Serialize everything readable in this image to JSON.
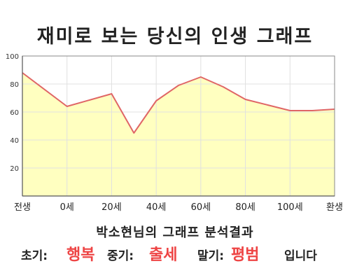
{
  "title": "재미로 보는 당신의 인생 그래프",
  "summary_label": "박소현님의 그래프 분석결과",
  "result": {
    "early_label": "초기:",
    "early_value": "행복",
    "mid_label": "중기:",
    "mid_value": "출세",
    "late_label": "말기:",
    "late_value": "평범",
    "ending": "입니다"
  },
  "colors": {
    "line": "#e06666",
    "fill": "#ffffc0",
    "grid": "#e0e0e0",
    "axis": "#888888",
    "highlight": "#ee4444"
  },
  "chart_data": {
    "type": "area",
    "title": "",
    "xlabel": "",
    "ylabel": "",
    "x_tick_labels": [
      "전생",
      "0세",
      "20세",
      "40세",
      "60세",
      "80세",
      "100세",
      "환생"
    ],
    "y_ticks": [
      20,
      40,
      60,
      80,
      100
    ],
    "ylim": [
      0,
      100
    ],
    "xlim": [
      -20,
      120
    ],
    "grid": true,
    "series": [
      {
        "x": [
          -20,
          0,
          20,
          30,
          40,
          50,
          60,
          70,
          80,
          90,
          100,
          110,
          120
        ],
        "values": [
          88,
          64,
          73,
          45,
          68,
          79,
          85,
          78,
          69,
          65,
          61,
          61,
          62
        ]
      }
    ]
  }
}
